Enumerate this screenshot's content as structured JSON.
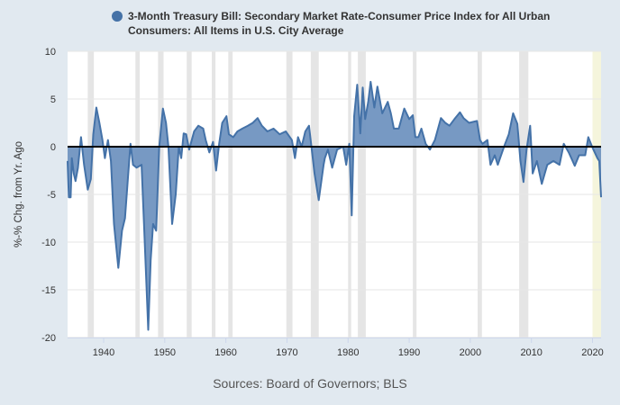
{
  "chart_data": {
    "type": "area",
    "title_lines": [
      "3-Month Treasury Bill: Secondary Market Rate-Consumer Price Index for All Urban",
      "Consumers: All Items in U.S. City Average"
    ],
    "ylabel": "%-% Chg. from Yr. Ago",
    "source": "Sources: Board of Governors; BLS",
    "xlim": [
      1934.1,
      2021.4
    ],
    "ylim": [
      -20,
      10
    ],
    "yticks": [
      10,
      5,
      0,
      -5,
      -10,
      -15,
      -20
    ],
    "xticks": [
      1940,
      1950,
      1960,
      1970,
      1980,
      1990,
      2000,
      2010,
      2020
    ],
    "grid": true,
    "legend_placement": "top",
    "colors": {
      "series_line": "#4472a8",
      "series_fill": "#7094c0",
      "recession": "#e5e5e5",
      "highlight": "#f5f5dc",
      "background": "#e1e9f0",
      "zero_line": "#000000"
    },
    "recessions": [
      [
        1937.4,
        1938.4
      ],
      [
        1945.2,
        1945.9
      ],
      [
        1948.9,
        1949.8
      ],
      [
        1953.6,
        1954.4
      ],
      [
        1957.7,
        1958.3
      ],
      [
        1960.4,
        1961.1
      ],
      [
        1969.9,
        1970.9
      ],
      [
        1973.9,
        1975.2
      ],
      [
        1980.0,
        1980.5
      ],
      [
        1981.6,
        1982.9
      ],
      [
        1990.6,
        1991.2
      ],
      [
        2001.2,
        2001.9
      ],
      [
        2008.0,
        2009.5
      ]
    ],
    "highlight_range": [
      2020.0,
      2021.4
    ],
    "series": [
      {
        "name": "3-Month Treasury Bill: Secondary Market Rate-Consumer Price Index for All Urban Consumers: All Items in U.S. City Average",
        "points": [
          [
            1934.1,
            -1.5
          ],
          [
            1934.3,
            -5.3
          ],
          [
            1934.6,
            -5.3
          ],
          [
            1934.8,
            -1.2
          ],
          [
            1935.1,
            -2.8
          ],
          [
            1935.4,
            -3.6
          ],
          [
            1935.8,
            -2.2
          ],
          [
            1936.3,
            1.0
          ],
          [
            1936.8,
            -1.9
          ],
          [
            1937.4,
            -4.5
          ],
          [
            1937.9,
            -3.4
          ],
          [
            1938.3,
            1.3
          ],
          [
            1938.8,
            4.1
          ],
          [
            1939.3,
            2.5
          ],
          [
            1939.8,
            0.7
          ],
          [
            1940.2,
            -1.2
          ],
          [
            1940.7,
            0.7
          ],
          [
            1941.2,
            -1.5
          ],
          [
            1941.7,
            -8.1
          ],
          [
            1942.4,
            -12.7
          ],
          [
            1943.0,
            -8.8
          ],
          [
            1943.5,
            -7.5
          ],
          [
            1944.0,
            -3.1
          ],
          [
            1944.4,
            0.3
          ],
          [
            1944.8,
            -1.9
          ],
          [
            1945.4,
            -2.2
          ],
          [
            1946.2,
            -1.9
          ],
          [
            1946.6,
            -8.1
          ],
          [
            1947.3,
            -19.2
          ],
          [
            1947.7,
            -11.9
          ],
          [
            1948.1,
            -8.1
          ],
          [
            1948.6,
            -8.8
          ],
          [
            1949.1,
            0.0
          ],
          [
            1949.7,
            4.0
          ],
          [
            1950.2,
            2.5
          ],
          [
            1950.6,
            0.0
          ],
          [
            1951.2,
            -8.1
          ],
          [
            1951.8,
            -5.0
          ],
          [
            1952.3,
            0.0
          ],
          [
            1952.7,
            -1.2
          ],
          [
            1953.1,
            1.4
          ],
          [
            1953.5,
            1.3
          ],
          [
            1954.0,
            -0.3
          ],
          [
            1954.8,
            1.6
          ],
          [
            1955.5,
            2.2
          ],
          [
            1956.3,
            1.9
          ],
          [
            1956.7,
            0.7
          ],
          [
            1957.3,
            -0.6
          ],
          [
            1957.9,
            0.5
          ],
          [
            1958.4,
            -2.5
          ],
          [
            1958.9,
            0.3
          ],
          [
            1959.4,
            2.5
          ],
          [
            1960.1,
            3.2
          ],
          [
            1960.5,
            1.3
          ],
          [
            1961.2,
            1.0
          ],
          [
            1961.9,
            1.6
          ],
          [
            1962.7,
            1.9
          ],
          [
            1963.6,
            2.2
          ],
          [
            1964.4,
            2.5
          ],
          [
            1965.2,
            3.0
          ],
          [
            1965.9,
            2.2
          ],
          [
            1966.8,
            1.6
          ],
          [
            1967.8,
            1.9
          ],
          [
            1968.8,
            1.3
          ],
          [
            1969.8,
            1.6
          ],
          [
            1970.8,
            0.7
          ],
          [
            1971.3,
            -1.2
          ],
          [
            1971.8,
            1.0
          ],
          [
            1972.4,
            0.0
          ],
          [
            1973.0,
            1.6
          ],
          [
            1973.6,
            2.2
          ],
          [
            1974.0,
            0.0
          ],
          [
            1974.5,
            -2.8
          ],
          [
            1975.2,
            -5.6
          ],
          [
            1976.0,
            -1.9
          ],
          [
            1976.2,
            -1.2
          ],
          [
            1976.7,
            -0.3
          ],
          [
            1977.4,
            -2.2
          ],
          [
            1978.2,
            -0.3
          ],
          [
            1979.2,
            0.0
          ],
          [
            1979.7,
            -1.9
          ],
          [
            1980.2,
            0.3
          ],
          [
            1980.6,
            -7.2
          ],
          [
            1981.0,
            3.2
          ],
          [
            1981.5,
            6.5
          ],
          [
            1982.0,
            1.4
          ],
          [
            1982.4,
            6.2
          ],
          [
            1982.8,
            2.9
          ],
          [
            1983.3,
            4.7
          ],
          [
            1983.7,
            6.8
          ],
          [
            1984.3,
            4.1
          ],
          [
            1984.8,
            6.3
          ],
          [
            1985.6,
            3.5
          ],
          [
            1986.5,
            4.7
          ],
          [
            1987.0,
            3.5
          ],
          [
            1987.5,
            1.9
          ],
          [
            1988.3,
            1.9
          ],
          [
            1989.2,
            4.0
          ],
          [
            1990.0,
            2.9
          ],
          [
            1990.6,
            3.3
          ],
          [
            1991.0,
            1.0
          ],
          [
            1991.5,
            1.0
          ],
          [
            1992.0,
            1.9
          ],
          [
            1992.7,
            0.3
          ],
          [
            1993.4,
            -0.3
          ],
          [
            1994.2,
            0.7
          ],
          [
            1995.2,
            3.0
          ],
          [
            1995.9,
            2.5
          ],
          [
            1996.6,
            2.2
          ],
          [
            1997.4,
            2.9
          ],
          [
            1998.3,
            3.6
          ],
          [
            1998.9,
            3.0
          ],
          [
            1999.8,
            2.5
          ],
          [
            2001.1,
            2.7
          ],
          [
            2001.6,
            0.7
          ],
          [
            2002.0,
            0.3
          ],
          [
            2002.8,
            0.7
          ],
          [
            2003.3,
            -1.9
          ],
          [
            2004.0,
            -0.9
          ],
          [
            2004.5,
            -1.9
          ],
          [
            2005.2,
            -0.6
          ],
          [
            2005.7,
            0.3
          ],
          [
            2006.3,
            1.3
          ],
          [
            2007.0,
            3.5
          ],
          [
            2007.7,
            2.4
          ],
          [
            2008.2,
            -1.5
          ],
          [
            2008.7,
            -3.7
          ],
          [
            2009.2,
            -0.3
          ],
          [
            2009.8,
            2.2
          ],
          [
            2010.2,
            -2.8
          ],
          [
            2010.9,
            -1.5
          ],
          [
            2011.7,
            -3.9
          ],
          [
            2012.6,
            -1.9
          ],
          [
            2013.6,
            -1.5
          ],
          [
            2014.6,
            -1.9
          ],
          [
            2015.3,
            0.3
          ],
          [
            2016.1,
            -0.6
          ],
          [
            2017.1,
            -2.0
          ],
          [
            2017.8,
            -0.9
          ],
          [
            2018.8,
            -0.9
          ],
          [
            2019.3,
            1.0
          ],
          [
            2020.0,
            -0.1
          ],
          [
            2020.8,
            -1.2
          ],
          [
            2021.1,
            -1.5
          ],
          [
            2021.4,
            -5.3
          ]
        ]
      }
    ]
  }
}
